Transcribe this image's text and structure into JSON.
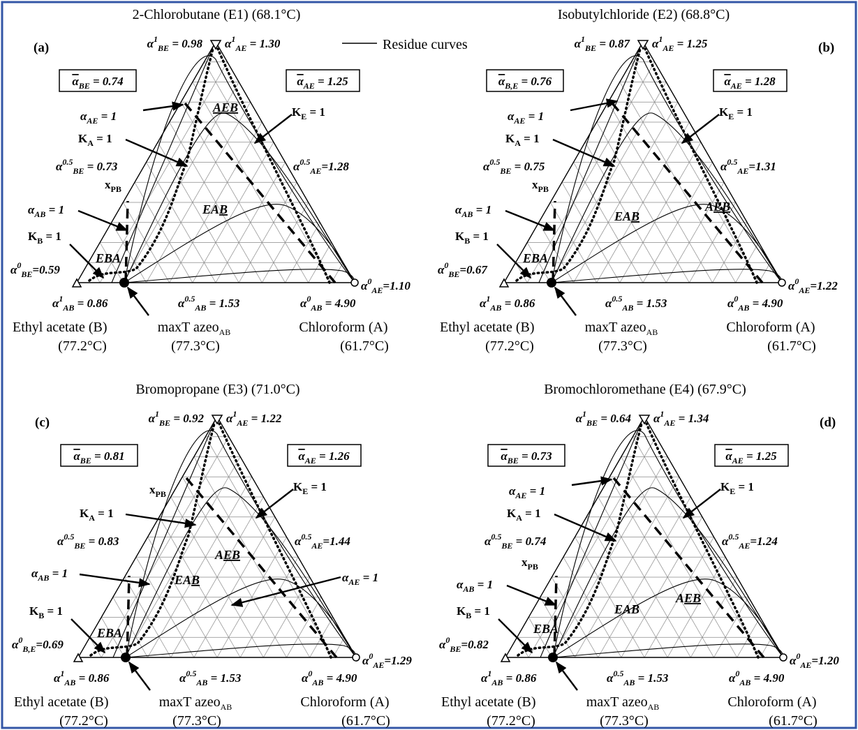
{
  "legend": "Residue curves",
  "panels": [
    {
      "letter": "(a)",
      "title": "2-Chlorobutane (E1) (68.1°C)",
      "labels": {
        "alpha1_BE": [
          {
            "t": "α"
          },
          {
            "sup": "1"
          },
          {
            "sub": "BE"
          },
          {
            "t": " = 0.98"
          }
        ],
        "alpha1_AE": [
          {
            "t": "α"
          },
          {
            "sup": "1"
          },
          {
            "sub": "AE"
          },
          {
            "t": " = 1.30"
          }
        ],
        "avg_BE": [
          {
            "over": "α"
          },
          {
            "sub": "BE"
          },
          {
            "t": " = 0.74"
          }
        ],
        "avg_AE": [
          {
            "over": "α"
          },
          {
            "sub": "AE"
          },
          {
            "t": " = 1.25"
          }
        ],
        "alphaAE1": [
          {
            "t": "α"
          },
          {
            "sub": "AE"
          },
          {
            "t": " = 1"
          }
        ],
        "KE1": [
          {
            "t": "K"
          },
          {
            "sub": "E"
          },
          {
            "t": " = 1"
          }
        ],
        "KA1": [
          {
            "t": "K"
          },
          {
            "sub": "A"
          },
          {
            "t": " = 1"
          }
        ],
        "alpha05_BE": [
          {
            "t": "α"
          },
          {
            "sup": "0.5"
          },
          {
            "sub": "BE"
          },
          {
            "t": " = 0.73"
          }
        ],
        "alpha05_AE": [
          {
            "t": "α"
          },
          {
            "sup": "0.5"
          },
          {
            "sub": "AE"
          },
          {
            "t": "=1.28"
          }
        ],
        "xPB": [
          {
            "t": "x"
          },
          {
            "sub": "PB"
          }
        ],
        "alphaAB1": [
          {
            "t": "α"
          },
          {
            "sub": "AB"
          },
          {
            "t": " = 1"
          }
        ],
        "KB1": [
          {
            "t": "K"
          },
          {
            "sub": "B"
          },
          {
            "t": " = 1"
          }
        ],
        "alpha0_BE": [
          {
            "t": "α"
          },
          {
            "sup": "0"
          },
          {
            "sub": "BE"
          },
          {
            "t": "=0.59"
          }
        ],
        "alpha0_AE": [
          {
            "t": "α"
          },
          {
            "sup": "0"
          },
          {
            "sub": "AE"
          },
          {
            "t": "=1.10"
          }
        ],
        "alpha1_AB": [
          {
            "t": "α"
          },
          {
            "sup": "1"
          },
          {
            "sub": "AB"
          },
          {
            "t": " = 0.86"
          }
        ],
        "alpha05_AB": [
          {
            "t": "α"
          },
          {
            "sup": "0.5"
          },
          {
            "sub": "AB"
          },
          {
            "t": " = 1.53"
          }
        ],
        "alpha0_AB": [
          {
            "t": "α"
          },
          {
            "sup": "0"
          },
          {
            "sub": "AB"
          },
          {
            "t": " = 4.90"
          }
        ],
        "region_AEB": [
          {
            "u": "AEB"
          }
        ],
        "region_EAB": [
          {
            "t": "EA"
          },
          {
            "u": "B"
          }
        ],
        "region_EBA": [
          {
            "t": "EBA"
          }
        ],
        "B1": [
          {
            "t": "Ethyl acetate (B)"
          }
        ],
        "B2": [
          {
            "t": "(77.2°C)"
          }
        ],
        "Z1": [
          {
            "t": "maxT azeo"
          },
          {
            "sub": "AB"
          }
        ],
        "Z2": [
          {
            "t": "(77.3°C)"
          }
        ],
        "A1": [
          {
            "t": "Chloroform (A)"
          }
        ],
        "A2": [
          {
            "t": "(61.7°C)"
          }
        ]
      }
    },
    {
      "letter": "(b)",
      "title": "Isobutylchloride (E2) (68.8°C)",
      "labels": {
        "alpha1_BE": [
          {
            "t": "α"
          },
          {
            "sup": "1"
          },
          {
            "sub": "BE"
          },
          {
            "t": " = 0.87"
          }
        ],
        "alpha1_AE": [
          {
            "t": "α"
          },
          {
            "sup": "1"
          },
          {
            "sub": "AE"
          },
          {
            "t": " = 1.25"
          }
        ],
        "avg_BE": [
          {
            "over": "α"
          },
          {
            "sub": "B,E"
          },
          {
            "t": " = 0.76"
          }
        ],
        "avg_AE": [
          {
            "over": "α"
          },
          {
            "sub": "AE"
          },
          {
            "t": " = 1.28"
          }
        ],
        "alphaAE1": [
          {
            "t": "α"
          },
          {
            "sub": "AE"
          },
          {
            "t": " = 1"
          }
        ],
        "KE1": [
          {
            "t": "K"
          },
          {
            "sub": "E"
          },
          {
            "t": " = 1"
          }
        ],
        "KA1": [
          {
            "t": "K"
          },
          {
            "sub": "A"
          },
          {
            "t": " = 1"
          }
        ],
        "alpha05_BE": [
          {
            "t": "α"
          },
          {
            "sup": "0.5"
          },
          {
            "sub": "BE"
          },
          {
            "t": " = 0.75"
          }
        ],
        "alpha05_AE": [
          {
            "t": "α"
          },
          {
            "sup": "0.5"
          },
          {
            "sub": "AE"
          },
          {
            "t": "=1.31"
          }
        ],
        "xPB": [
          {
            "t": "x"
          },
          {
            "sub": "PB"
          }
        ],
        "alphaAB1": [
          {
            "t": "α"
          },
          {
            "sub": "AB"
          },
          {
            "t": " = 1"
          }
        ],
        "KB1": [
          {
            "t": "K"
          },
          {
            "sub": "B"
          },
          {
            "t": " = 1"
          }
        ],
        "alpha0_BE": [
          {
            "t": "α"
          },
          {
            "sup": "0"
          },
          {
            "sub": "BE"
          },
          {
            "t": "=0.67"
          }
        ],
        "alpha0_AE": [
          {
            "t": "α"
          },
          {
            "sup": "0"
          },
          {
            "sub": "AE"
          },
          {
            "t": "=1.22"
          }
        ],
        "alpha1_AB": [
          {
            "t": "α"
          },
          {
            "sup": "1"
          },
          {
            "sub": "AB"
          },
          {
            "t": " = 0.86"
          }
        ],
        "alpha05_AB": [
          {
            "t": "α"
          },
          {
            "sup": "0.5"
          },
          {
            "sub": "AB"
          },
          {
            "t": " = 1.53"
          }
        ],
        "alpha0_AB": [
          {
            "t": "α"
          },
          {
            "sup": "0"
          },
          {
            "sub": "AB"
          },
          {
            "t": " = 4.90"
          }
        ],
        "region_AEB": [
          {
            "t": "A"
          },
          {
            "u": "EB"
          }
        ],
        "region_EAB": [
          {
            "t": "EA"
          },
          {
            "u": "B"
          }
        ],
        "region_EBA": [
          {
            "t": "EBA"
          }
        ],
        "B1": [
          {
            "t": "Ethyl acetate (B)"
          }
        ],
        "B2": [
          {
            "t": "(77.2°C)"
          }
        ],
        "Z1": [
          {
            "t": "maxT azeo"
          },
          {
            "sub": "AB"
          }
        ],
        "Z2": [
          {
            "t": "(77.3°C)"
          }
        ],
        "A1": [
          {
            "t": "Chloroform (A)"
          }
        ],
        "A2": [
          {
            "t": "(61.7°C)"
          }
        ]
      }
    },
    {
      "letter": "(c)",
      "title": "Bromopropane (E3) (71.0°C)",
      "labels": {
        "alpha1_BE": [
          {
            "t": "α"
          },
          {
            "sup": "1"
          },
          {
            "sub": "BE"
          },
          {
            "t": " = 0.92"
          }
        ],
        "alpha1_AE": [
          {
            "t": "α"
          },
          {
            "sup": "1"
          },
          {
            "sub": "AE"
          },
          {
            "t": " = 1.22"
          }
        ],
        "avg_BE": [
          {
            "over": "α"
          },
          {
            "sub": "BE"
          },
          {
            "t": " = 0.81"
          }
        ],
        "avg_AE": [
          {
            "over": "α"
          },
          {
            "sub": "AE"
          },
          {
            "t": " = 1.26"
          }
        ],
        "alphaAE1": [
          {
            "t": "α"
          },
          {
            "sub": "AE"
          },
          {
            "t": " = 1"
          }
        ],
        "KE1": [
          {
            "t": "K"
          },
          {
            "sub": "E"
          },
          {
            "t": " = 1"
          }
        ],
        "KA1": [
          {
            "t": "K"
          },
          {
            "sub": "A"
          },
          {
            "t": " = 1"
          }
        ],
        "alpha05_BE": [
          {
            "t": "α"
          },
          {
            "sup": "0.5"
          },
          {
            "sub": "BE"
          },
          {
            "t": " = 0.83"
          }
        ],
        "alpha05_AE": [
          {
            "t": "α"
          },
          {
            "sup": "0.5"
          },
          {
            "sub": "AE"
          },
          {
            "t": "=1.44"
          }
        ],
        "xPB": [
          {
            "t": "x"
          },
          {
            "sub": "PB"
          }
        ],
        "alphaAB1": [
          {
            "t": "α"
          },
          {
            "sub": "AB"
          },
          {
            "t": " = 1"
          }
        ],
        "KB1": [
          {
            "t": "K"
          },
          {
            "sub": "B"
          },
          {
            "t": " = 1"
          }
        ],
        "alpha0_BE": [
          {
            "t": "α"
          },
          {
            "sup": "0"
          },
          {
            "sub": "B,E"
          },
          {
            "t": "=0.69"
          }
        ],
        "alpha0_AE": [
          {
            "t": "α"
          },
          {
            "sup": "0"
          },
          {
            "sub": "AE"
          },
          {
            "t": "=1.29"
          }
        ],
        "alpha1_AB": [
          {
            "t": "α"
          },
          {
            "sup": "1"
          },
          {
            "sub": "AB"
          },
          {
            "t": " = 0.86"
          }
        ],
        "alpha05_AB": [
          {
            "t": "α"
          },
          {
            "sup": "0.5"
          },
          {
            "sub": "AB"
          },
          {
            "t": " = 1.53"
          }
        ],
        "alpha0_AB": [
          {
            "t": "α"
          },
          {
            "sup": "0"
          },
          {
            "sub": "AB"
          },
          {
            "t": " = 4.90"
          }
        ],
        "region_AEB": [
          {
            "t": "A"
          },
          {
            "u": "EB"
          }
        ],
        "region_EAB": [
          {
            "t": "EA"
          },
          {
            "u": "B"
          }
        ],
        "region_EBA": [
          {
            "t": "EBA"
          }
        ],
        "B1": [
          {
            "t": "Ethyl acetate (B)"
          }
        ],
        "B2": [
          {
            "t": "(77.2°C)"
          }
        ],
        "Z1": [
          {
            "t": "maxT azeo"
          },
          {
            "sub": "AB"
          }
        ],
        "Z2": [
          {
            "t": "(77.3°C)"
          }
        ],
        "A1": [
          {
            "t": "Chloroform (A)"
          }
        ],
        "A2": [
          {
            "t": "(61.7°C)"
          }
        ]
      }
    },
    {
      "letter": "(d)",
      "title": "Bromochloromethane (E4) (67.9°C)",
      "labels": {
        "alpha1_BE": [
          {
            "t": "α"
          },
          {
            "sup": "1"
          },
          {
            "sub": "BE"
          },
          {
            "t": " = 0.64"
          }
        ],
        "alpha1_AE": [
          {
            "t": "α"
          },
          {
            "sup": "1"
          },
          {
            "sub": "AE"
          },
          {
            "t": " = 1.34"
          }
        ],
        "avg_BE": [
          {
            "over": "α"
          },
          {
            "sub": "BE"
          },
          {
            "t": " = 0.73"
          }
        ],
        "avg_AE": [
          {
            "over": "α"
          },
          {
            "sub": "AE"
          },
          {
            "t": " = 1.25"
          }
        ],
        "alphaAE1": [
          {
            "t": "α"
          },
          {
            "sub": "AE"
          },
          {
            "t": " = 1"
          }
        ],
        "KE1": [
          {
            "t": "K"
          },
          {
            "sub": "E"
          },
          {
            "t": " = 1"
          }
        ],
        "KA1": [
          {
            "t": "K"
          },
          {
            "sub": "A"
          },
          {
            "t": " = 1"
          }
        ],
        "alpha05_BE": [
          {
            "t": "α"
          },
          {
            "sup": "0.5"
          },
          {
            "sub": "BE"
          },
          {
            "t": " = 0.74"
          }
        ],
        "alpha05_AE": [
          {
            "t": "α"
          },
          {
            "sup": "0.5"
          },
          {
            "sub": "AE"
          },
          {
            "t": "=1.24"
          }
        ],
        "xPB": [
          {
            "t": "x"
          },
          {
            "sub": "PB"
          }
        ],
        "alphaAB1": [
          {
            "t": "α"
          },
          {
            "sub": "AB"
          },
          {
            "t": " = 1"
          }
        ],
        "KB1": [
          {
            "t": "K"
          },
          {
            "sub": "B"
          },
          {
            "t": " = 1"
          }
        ],
        "alpha0_BE": [
          {
            "t": "α"
          },
          {
            "sup": "0"
          },
          {
            "sub": "BE"
          },
          {
            "t": "=0.82"
          }
        ],
        "alpha0_AE": [
          {
            "t": "α"
          },
          {
            "sup": "0"
          },
          {
            "sub": "AE"
          },
          {
            "t": "=1.20"
          }
        ],
        "alpha1_AB": [
          {
            "t": "α"
          },
          {
            "sup": "1"
          },
          {
            "sub": "AB"
          },
          {
            "t": " = 0.86"
          }
        ],
        "alpha05_AB": [
          {
            "t": "α"
          },
          {
            "sup": "0.5"
          },
          {
            "sub": "AB"
          },
          {
            "t": " = 1.53"
          }
        ],
        "alpha0_AB": [
          {
            "t": "α"
          },
          {
            "sup": "0"
          },
          {
            "sub": "AB"
          },
          {
            "t": " = 4.90"
          }
        ],
        "region_AEB": [
          {
            "t": "A"
          },
          {
            "u": "EB"
          }
        ],
        "region_EAB": [
          {
            "t": "EAB"
          }
        ],
        "region_EBA": [
          {
            "t": "EBA"
          }
        ],
        "B1": [
          {
            "t": "Ethyl acetate (B)"
          }
        ],
        "B2": [
          {
            "t": "(77.2°C)"
          }
        ],
        "Z1": [
          {
            "t": "maxT azeo"
          },
          {
            "sub": "AB"
          }
        ],
        "Z2": [
          {
            "t": "(77.3°C)"
          }
        ],
        "A1": [
          {
            "t": "Chloroform (A)"
          }
        ],
        "A2": [
          {
            "t": "(61.7°C)"
          }
        ]
      }
    }
  ]
}
